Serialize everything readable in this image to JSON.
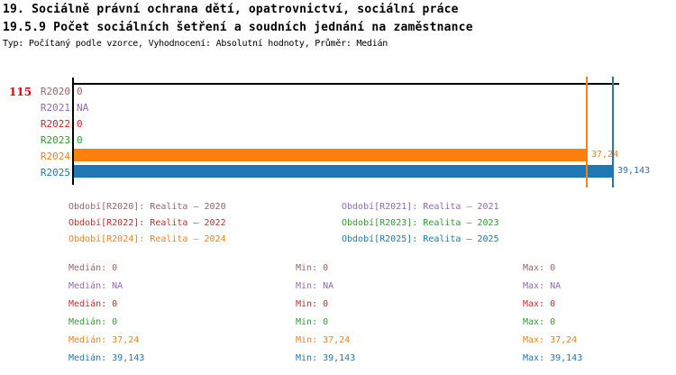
{
  "header": {
    "title_line1": "19. Sociálně právní ochrana dětí, opatrovnictví, sociální práce",
    "title_line2": "19.5.9 Počet sociálních šetření a soudních jednání na zaměstnance",
    "meta": "Typ: Počítaný podle vzorce, Vyhodnocení: Absolutní hodnoty, Průměr: Medián"
  },
  "indicator_number": "115",
  "colors": {
    "indicator": "#e00000",
    "axis": "#000000"
  },
  "chart_data": {
    "type": "bar",
    "orientation": "horizontal",
    "title": "19.5.9 Počet sociálních šetření a soudních jednání na zaměstnance",
    "xlabel": "",
    "ylabel": "",
    "xlim": [
      0,
      39.6
    ],
    "grid": false,
    "legend_position": "below",
    "categories": [
      "R2020",
      "R2021",
      "R2022",
      "R2023",
      "R2024",
      "R2025"
    ],
    "rows": [
      {
        "period": "R2020",
        "series": "Realita – 2020",
        "value": 0,
        "value_label": "0",
        "color": "#996666"
      },
      {
        "period": "R2021",
        "series": "Realita – 2021",
        "value": null,
        "value_label": "NA",
        "color": "#9467bd"
      },
      {
        "period": "R2022",
        "series": "Realita – 2022",
        "value": 0,
        "value_label": "0",
        "color": "#d62728"
      },
      {
        "period": "R2023",
        "series": "Realita – 2023",
        "value": 0,
        "value_label": "0",
        "color": "#2ca02c"
      },
      {
        "period": "R2024",
        "series": "Realita – 2024",
        "value": 37.24,
        "value_label": "37,24",
        "color": "#ff7f0e"
      },
      {
        "period": "R2025",
        "series": "Realita – 2025",
        "value": 39.143,
        "value_label": "39,143",
        "color": "#1f77b4"
      }
    ],
    "marker_lines": [
      {
        "value": 37.24,
        "color": "#ff7f0e"
      },
      {
        "value": 39.143,
        "color": "#1f77b4"
      }
    ]
  },
  "legend": {
    "items": [
      {
        "text": "Období[R2020]: Realita – 2020",
        "color": "#996666"
      },
      {
        "text": "Období[R2021]: Realita – 2021",
        "color": "#9467bd"
      },
      {
        "text": "Období[R2022]: Realita – 2022",
        "color": "#d62728"
      },
      {
        "text": "Období[R2023]: Realita – 2023",
        "color": "#2ca02c"
      },
      {
        "text": "Období[R2024]: Realita – 2024",
        "color": "#ff7f0e"
      },
      {
        "text": "Období[R2025]: Realita – 2025",
        "color": "#1f77b4"
      }
    ]
  },
  "stats": {
    "rows": [
      {
        "color": "#996666",
        "cells": [
          "Medián: 0",
          "Min: 0",
          "Max: 0"
        ]
      },
      {
        "color": "#9467bd",
        "cells": [
          "Medián: NA",
          "Min: NA",
          "Max: NA"
        ]
      },
      {
        "color": "#d62728",
        "cells": [
          "Medián: 0",
          "Min: 0",
          "Max: 0"
        ]
      },
      {
        "color": "#2ca02c",
        "cells": [
          "Medián: 0",
          "Min: 0",
          "Max: 0"
        ]
      },
      {
        "color": "#ff7f0e",
        "cells": [
          "Medián: 37,24",
          "Min: 37,24",
          "Max: 37,24"
        ]
      },
      {
        "color": "#1f77b4",
        "cells": [
          "Medián: 39,143",
          "Min: 39,143",
          "Max: 39,143"
        ]
      }
    ]
  }
}
